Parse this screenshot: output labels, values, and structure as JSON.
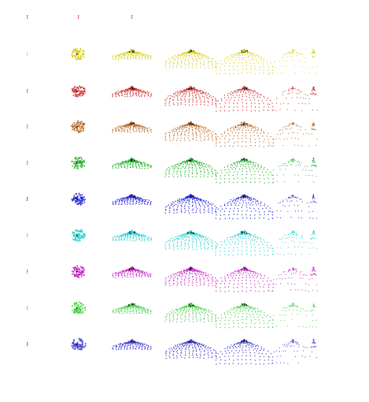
{
  "sprite_sheet": {
    "description_free": true,
    "stage_count": 7,
    "rows": [
      {
        "name": "header-red",
        "color": "#e03030"
      },
      {
        "name": "yellow",
        "color": "#d8d020"
      },
      {
        "name": "red",
        "color": "#d03838"
      },
      {
        "name": "brown",
        "color": "#b86a28"
      },
      {
        "name": "green",
        "color": "#28b030"
      },
      {
        "name": "blue",
        "color": "#2a2ad8"
      },
      {
        "name": "cyan",
        "color": "#28d0d0"
      },
      {
        "name": "magenta",
        "color": "#c828c8"
      },
      {
        "name": "light-green",
        "color": "#48d048"
      },
      {
        "name": "periwinkle",
        "color": "#4040d0"
      }
    ]
  }
}
